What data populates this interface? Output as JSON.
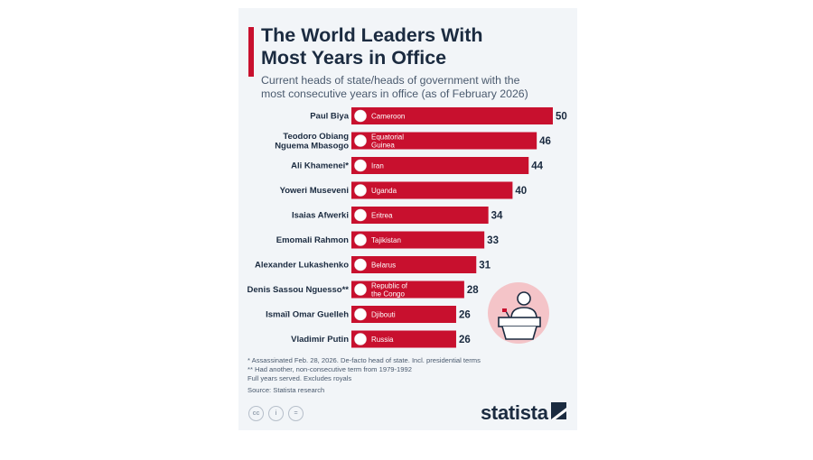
{
  "header": {
    "title_line1": "The World Leaders With",
    "title_line2": "Most Years in Office",
    "subtitle_line1": "Current heads of state/heads of government with the",
    "subtitle_line2": "most consecutive years in office (as of February 2026)"
  },
  "chart_data": {
    "type": "bar",
    "orientation": "horizontal",
    "value_unit": "years",
    "categories": [
      {
        "name": [
          "Paul Biya"
        ],
        "country": [
          "Cameroon"
        ],
        "value": 50
      },
      {
        "name": [
          "Teodoro Obiang",
          "Nguema Mbasogo"
        ],
        "country": [
          "Equatorial",
          "Guinea"
        ],
        "value": 46
      },
      {
        "name": [
          "Ali Khamenei*"
        ],
        "country": [
          "Iran"
        ],
        "value": 44
      },
      {
        "name": [
          "Yoweri Museveni"
        ],
        "country": [
          "Uganda"
        ],
        "value": 40
      },
      {
        "name": [
          "Isaias Afwerki"
        ],
        "country": [
          "Eritrea"
        ],
        "value": 34
      },
      {
        "name": [
          "Emomali Rahmon"
        ],
        "country": [
          "Tajikistan"
        ],
        "value": 33
      },
      {
        "name": [
          "Alexander Lukashenko"
        ],
        "country": [
          "Belarus"
        ],
        "value": 31
      },
      {
        "name": [
          "Denis Sassou Nguesso**"
        ],
        "country": [
          "Republic of",
          "the Congo"
        ],
        "value": 28
      },
      {
        "name": [
          "Ismaïl Omar Guelleh"
        ],
        "country": [
          "Djibouti"
        ],
        "value": 26
      },
      {
        "name": [
          "Vladimir Putin"
        ],
        "country": [
          "Russia"
        ],
        "value": 26
      }
    ],
    "xlim": [
      0,
      50
    ],
    "bar_color": "#c8102e",
    "grid": false,
    "legend": "none"
  },
  "footnotes": [
    "*   Assassinated Feb. 28, 2026. De-facto head of state. Incl. presidential terms",
    "** Had another, non-consecutive term from 1979-1992",
    "Full years served. Excludes royals",
    "Source: Statista research"
  ],
  "license_icons": [
    "cc-icon",
    "by-icon",
    "nd-icon"
  ],
  "license_labels": [
    "cc",
    "i",
    "="
  ],
  "brand": {
    "logo_text": "statista",
    "accent": "#c8102e",
    "dark": "#1b2b40"
  },
  "illustration_icon": "person-at-podium-icon"
}
